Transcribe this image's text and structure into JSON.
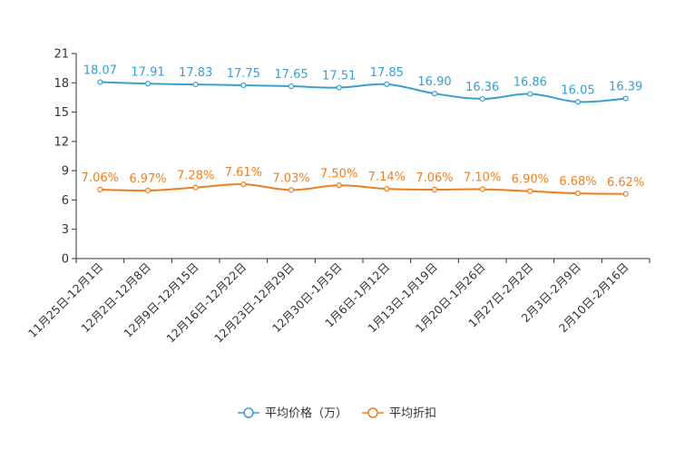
{
  "chart_data": {
    "type": "line",
    "categories": [
      "11月25日-12月1日",
      "12月2日-12月8日",
      "12月9日-12月15日",
      "12月16日-12月22日",
      "12月23日-12月29日",
      "12月30日-1月5日",
      "1月6日-1月12日",
      "1月13日-1月19日",
      "1月20日-1月26日",
      "1月27日-2月2日",
      "2月3日-2月9日",
      "2月10日-2月16日"
    ],
    "ylim": [
      0,
      21
    ],
    "yticks": [
      0,
      3,
      6,
      9,
      12,
      15,
      18,
      21
    ],
    "series": [
      {
        "name": "平均价格（万）",
        "color": "#3a9fd0",
        "values": [
          18.07,
          17.91,
          17.83,
          17.75,
          17.65,
          17.51,
          17.85,
          16.9,
          16.36,
          16.86,
          16.05,
          16.39
        ],
        "labels": [
          "18.07",
          "17.91",
          "17.83",
          "17.75",
          "17.65",
          "17.51",
          "17.85",
          "16.90",
          "16.36",
          "16.86",
          "16.05",
          "16.39"
        ]
      },
      {
        "name": "平均折扣",
        "color": "#f07e1d",
        "values": [
          7.06,
          6.97,
          7.28,
          7.61,
          7.03,
          7.5,
          7.14,
          7.06,
          7.1,
          6.9,
          6.68,
          6.62
        ],
        "labels": [
          "7.06%",
          "6.97%",
          "7.28%",
          "7.61%",
          "7.03%",
          "7.50%",
          "7.14%",
          "7.06%",
          "7.10%",
          "6.90%",
          "6.68%",
          "6.62%"
        ]
      }
    ],
    "title": "",
    "xlabel": "",
    "ylabel": "",
    "legend_position": "bottom-center"
  }
}
